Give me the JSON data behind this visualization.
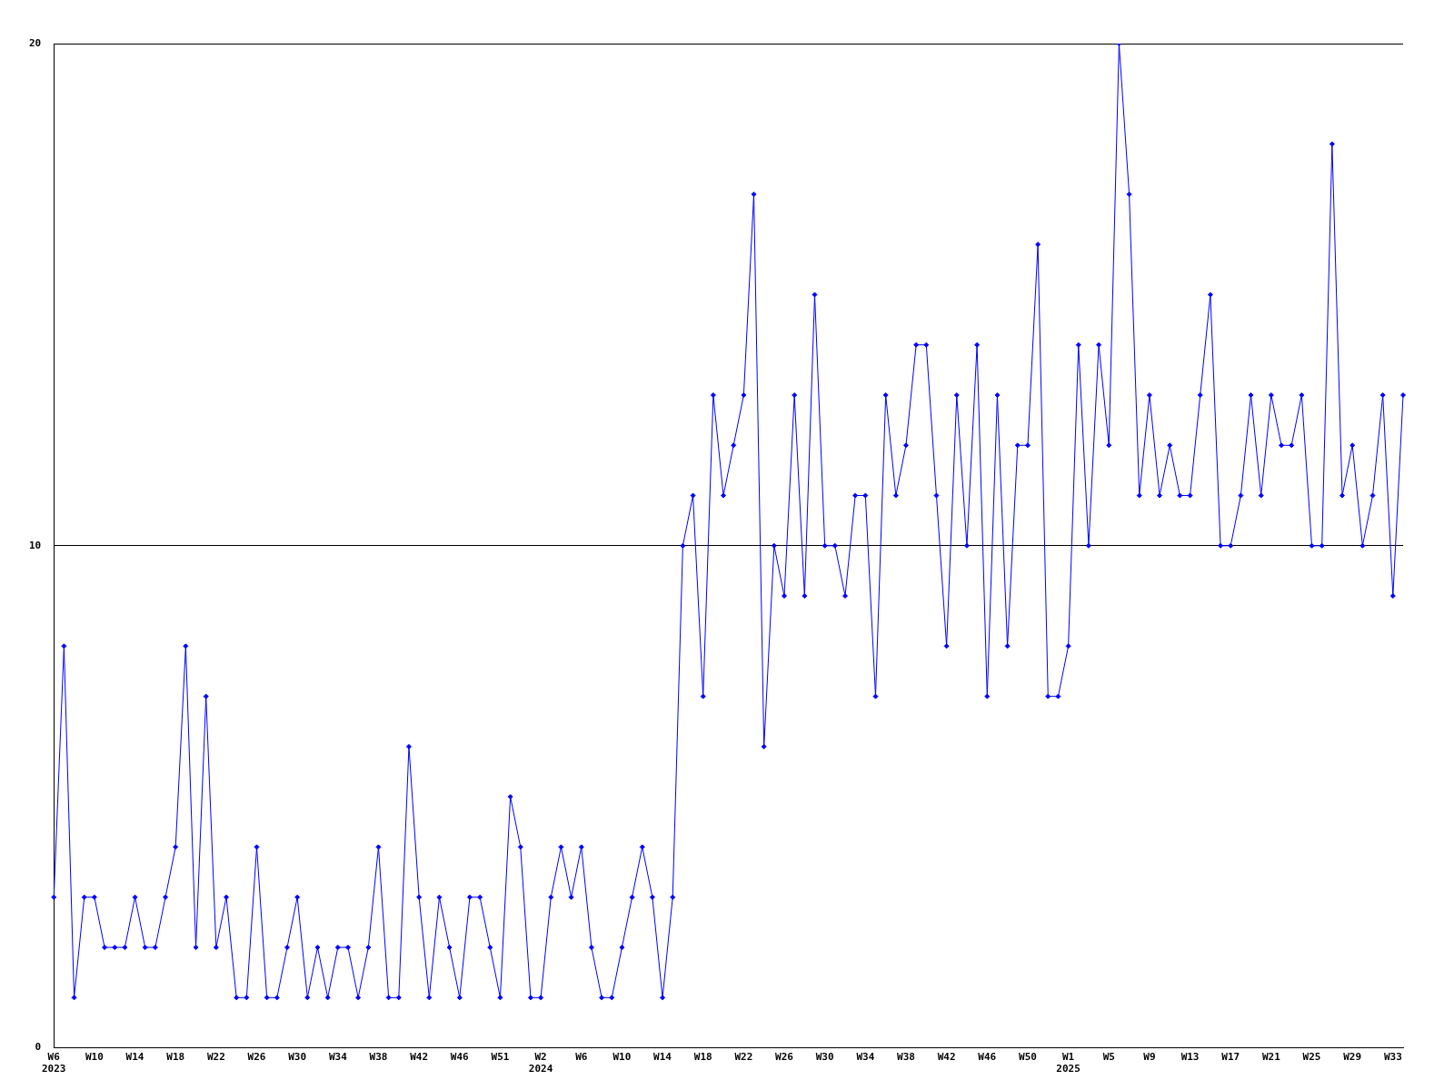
{
  "chart_data": {
    "type": "line",
    "categories": [
      "W6\n2023",
      null,
      null,
      null,
      "W10",
      null,
      null,
      null,
      "W14",
      null,
      null,
      null,
      "W18",
      null,
      null,
      null,
      "W22",
      null,
      null,
      null,
      "W26",
      null,
      null,
      null,
      "W30",
      null,
      null,
      null,
      "W34",
      null,
      null,
      null,
      "W38",
      null,
      null,
      null,
      "W42",
      null,
      null,
      null,
      "W46",
      null,
      null,
      null,
      "W51",
      null,
      null,
      null,
      "W2\n2024",
      null,
      null,
      null,
      "W6",
      null,
      null,
      null,
      "W10",
      null,
      null,
      null,
      "W14",
      null,
      null,
      null,
      "W18",
      null,
      null,
      null,
      "W22",
      null,
      null,
      null,
      "W26",
      null,
      null,
      null,
      "W30",
      null,
      null,
      null,
      "W34",
      null,
      null,
      null,
      "W38",
      null,
      null,
      null,
      "W42",
      null,
      null,
      null,
      "W46",
      null,
      null,
      null,
      "W50",
      null,
      null,
      null,
      "W1\n2025",
      null,
      null,
      null,
      "W5",
      null,
      null,
      null,
      "W9",
      null,
      null,
      null,
      "W13",
      null,
      null,
      null,
      "W17",
      null,
      null,
      null,
      "W21",
      null,
      null,
      null,
      "W25",
      null,
      null,
      null,
      "W29",
      null,
      null,
      null,
      "W33",
      null
    ],
    "series": [
      {
        "color": "#0000ff",
        "values": [
          3,
          8,
          1,
          3,
          3,
          2,
          2,
          2,
          3,
          2,
          2,
          3,
          4,
          8,
          2,
          7,
          2,
          3,
          1,
          1,
          4,
          1,
          1,
          2,
          3,
          1,
          2,
          1,
          2,
          2,
          1,
          2,
          4,
          1,
          1,
          6,
          3,
          1,
          3,
          2,
          1,
          3,
          3,
          2,
          1,
          5,
          4,
          1,
          1,
          3,
          4,
          3,
          4,
          2,
          1,
          1,
          2,
          3,
          4,
          3,
          1,
          3,
          10,
          11,
          7,
          13,
          11,
          12,
          13,
          17,
          6,
          10,
          9,
          13,
          9,
          15,
          10,
          10,
          9,
          11,
          11,
          7,
          13,
          11,
          12,
          14,
          14,
          11,
          8,
          13,
          10,
          14,
          7,
          13,
          8,
          12,
          12,
          16,
          7,
          7,
          8,
          14,
          10,
          14,
          12,
          20,
          17,
          11,
          13,
          11,
          12,
          11,
          11,
          13,
          15,
          10,
          10,
          11,
          13,
          11,
          13,
          12,
          12,
          13,
          10,
          10,
          18,
          11,
          12,
          10,
          11,
          13,
          9,
          13
        ]
      }
    ],
    "ylim": [
      0,
      20
    ],
    "yticks": [
      0,
      10,
      20
    ],
    "grid": "y",
    "marker": "diamond",
    "line_style": "solid",
    "legend": false
  }
}
